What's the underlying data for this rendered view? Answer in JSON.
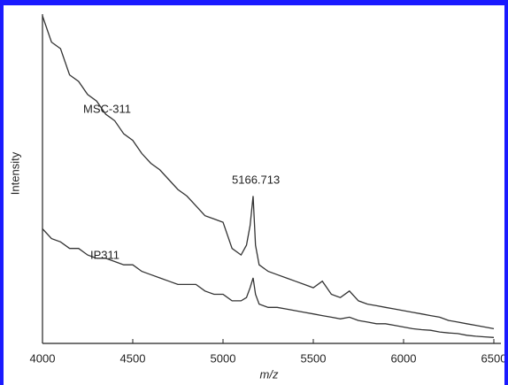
{
  "chart_data": {
    "type": "line",
    "x_label": "m/z",
    "y_label": "Intensity",
    "x": [
      4000,
      4050,
      4100,
      4150,
      4200,
      4250,
      4300,
      4350,
      4400,
      4450,
      4500,
      4550,
      4600,
      4650,
      4700,
      4750,
      4800,
      4850,
      4900,
      4950,
      5000,
      5050,
      5100,
      5130,
      5150,
      5166.713,
      5180,
      5200,
      5250,
      5300,
      5350,
      5400,
      5450,
      5500,
      5550,
      5600,
      5650,
      5700,
      5750,
      5800,
      5850,
      5900,
      5950,
      6000,
      6050,
      6100,
      6150,
      6200,
      6250,
      6300,
      6350,
      6400,
      6450,
      6500
    ],
    "series": [
      {
        "name": "MSC-311",
        "color": "#333333",
        "values": [
          100,
          92,
          90,
          82,
          80,
          76,
          74,
          70,
          68,
          64,
          62,
          58,
          55,
          53,
          50,
          47,
          45,
          42,
          39,
          38,
          37,
          29,
          27,
          30,
          36,
          45,
          30,
          24,
          22,
          21,
          20,
          19,
          18,
          17,
          19,
          15,
          14,
          16,
          13,
          12,
          11.5,
          11,
          10.5,
          10,
          9.5,
          9,
          8.5,
          8,
          7,
          6.5,
          6,
          5.5,
          5,
          4.5
        ]
      },
      {
        "name": "IP311",
        "color": "#333333",
        "values": [
          35,
          32,
          31,
          29,
          29,
          27,
          26,
          26,
          25,
          24,
          24,
          22,
          21,
          20,
          19,
          18,
          18,
          18,
          16,
          15,
          15,
          13,
          13,
          14,
          17,
          20,
          15,
          12,
          11,
          11,
          10.5,
          10,
          9.5,
          9,
          8.5,
          8,
          7.5,
          8,
          7,
          6.5,
          6,
          6,
          5.5,
          5,
          4.5,
          4.2,
          4,
          3.5,
          3.2,
          3,
          2.5,
          2.2,
          2,
          1.8
        ]
      }
    ],
    "annotations": [
      "5166.713"
    ],
    "xlim": [
      4000,
      6500
    ],
    "xticks": [
      4000,
      4500,
      5000,
      5500,
      6000,
      6500
    ],
    "ylim": [
      0,
      100
    ]
  }
}
